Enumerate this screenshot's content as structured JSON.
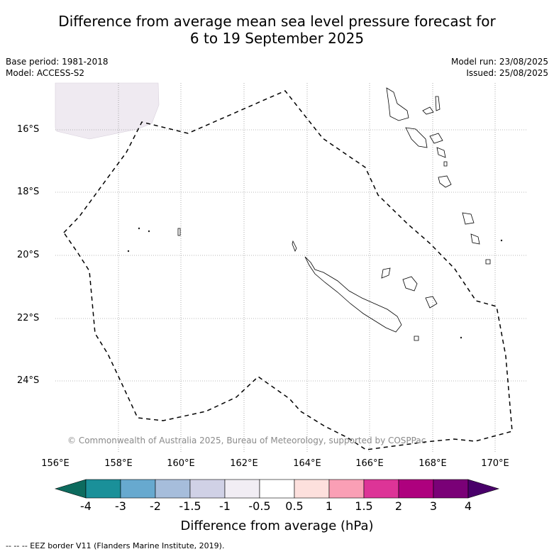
{
  "title_line1": "Difference from average mean sea level pressure forecast for",
  "title_line2": "6 to 19 September 2025",
  "base_period": "Base period: 1981-2018",
  "model": "Model: ACCESS-S2",
  "model_run": "Model run: 23/08/2025",
  "issued": "Issued: 25/08/2025",
  "lat_labels": [
    "16°S",
    "18°S",
    "20°S",
    "22°S",
    "24°S"
  ],
  "lon_labels": [
    "156°E",
    "158°E",
    "160°E",
    "162°E",
    "164°E",
    "166°E",
    "168°E",
    "170°E"
  ],
  "copyright": "© Commonwealth of Australia 2025, Bureau of Meteorology, supported by COSPPac",
  "colorbar": {
    "labels": [
      "-4",
      "-3",
      "-2",
      "-1.5",
      "-1",
      "-0.5",
      "0.5",
      "1",
      "1.5",
      "2",
      "3",
      "4"
    ],
    "colors": [
      "#0d6b5e",
      "#1a9099",
      "#67a9cf",
      "#a6bddb",
      "#d0d1e6",
      "#f1edf4",
      "#ffffff",
      "#fde0dd",
      "#fa9fb5",
      "#dd3497",
      "#ae017e",
      "#7a0177",
      "#49006a"
    ],
    "title": "Difference from average (hPa)"
  },
  "footer": "--  --  -- EEZ border V11 (Flanders Marine Institute, 2019)."
}
